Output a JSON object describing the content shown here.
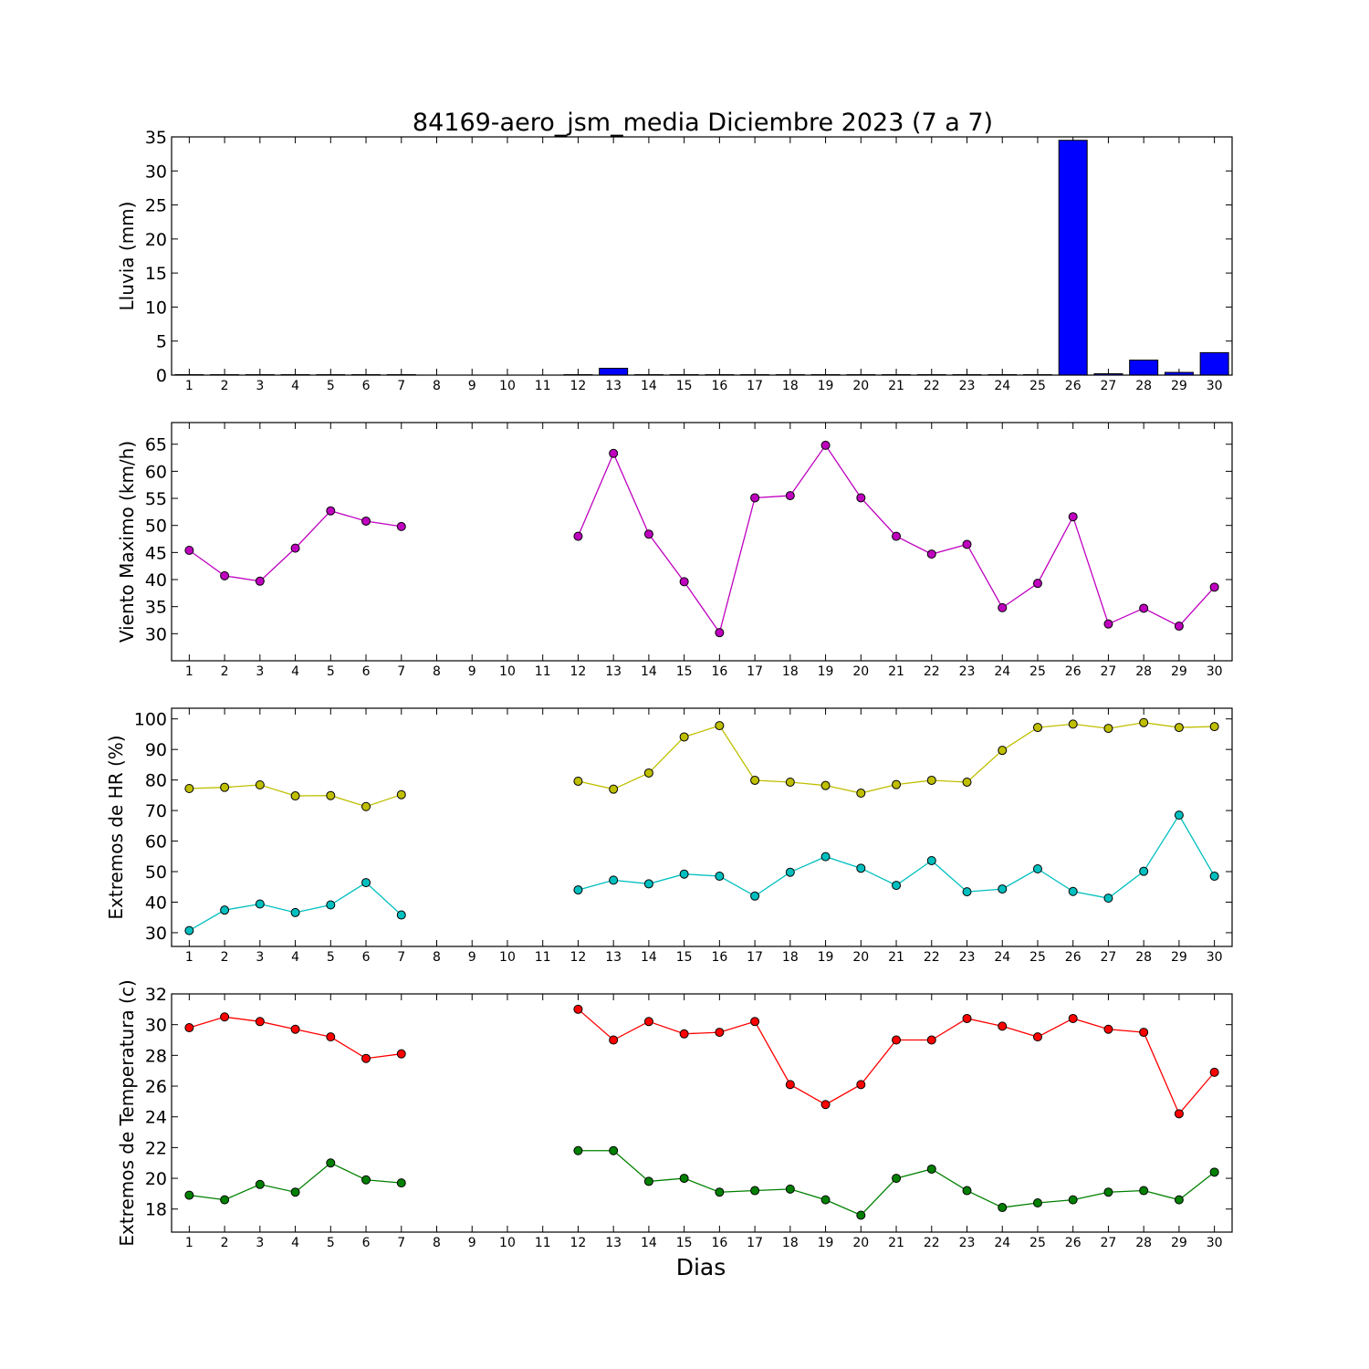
{
  "chart_data": {
    "title": "84169-aero_jsm_media Diciembre 2023  (7 a 7)",
    "xlabel": "Dias",
    "days": [
      1,
      2,
      3,
      4,
      5,
      6,
      7,
      8,
      9,
      10,
      11,
      12,
      13,
      14,
      15,
      16,
      17,
      18,
      19,
      20,
      21,
      22,
      23,
      24,
      25,
      26,
      27,
      28,
      29,
      30
    ],
    "panels": [
      {
        "name": "rain",
        "type": "bar",
        "ylabel": "Lluvia (mm)",
        "ylim": [
          0,
          35
        ],
        "yticks": [
          0,
          5,
          10,
          15,
          20,
          25,
          30,
          35
        ],
        "series": [
          {
            "color": "#0000ff",
            "values": [
              0,
              0,
              0,
              0,
              0,
              0,
              0,
              null,
              null,
              null,
              null,
              0,
              1.0,
              0,
              0,
              0,
              0,
              0,
              0,
              0,
              0,
              0,
              0,
              0,
              0,
              34.5,
              0.2,
              2.2,
              0.4,
              3.3
            ]
          }
        ]
      },
      {
        "name": "wind",
        "type": "line",
        "ylabel": "Viento Maximo (km/h)",
        "ylim": [
          25,
          69
        ],
        "yticks": [
          30,
          35,
          40,
          45,
          50,
          55,
          60,
          65
        ],
        "series": [
          {
            "color": "#bf00bf",
            "values": [
              45.4,
              40.7,
              39.7,
              45.8,
              52.7,
              50.8,
              49.8,
              null,
              null,
              null,
              null,
              48.0,
              63.3,
              48.4,
              39.6,
              30.2,
              55.1,
              55.5,
              64.8,
              55.1,
              48.0,
              44.7,
              46.5,
              34.8,
              39.3,
              51.6,
              31.8,
              34.7,
              31.4,
              38.6
            ]
          }
        ]
      },
      {
        "name": "humidity",
        "type": "line",
        "ylabel": "Extremos de HR (%)",
        "ylim": [
          25.5,
          103.5
        ],
        "yticks": [
          30,
          40,
          50,
          60,
          70,
          80,
          90,
          100
        ],
        "series": [
          {
            "color": "#bfbf00",
            "values": [
              77.2,
              77.6,
              78.4,
              74.8,
              74.9,
              71.3,
              75.2,
              null,
              null,
              null,
              null,
              79.6,
              77.0,
              82.3,
              94.1,
              97.8,
              79.9,
              79.3,
              78.2,
              75.7,
              78.5,
              79.9,
              79.3,
              89.7,
              97.2,
              98.3,
              96.9,
              98.8,
              97.2,
              97.5
            ]
          },
          {
            "color": "#00bfbf",
            "values": [
              30.7,
              37.4,
              39.4,
              36.6,
              39.1,
              46.4,
              35.8,
              null,
              null,
              null,
              null,
              44.0,
              47.2,
              46.0,
              49.2,
              48.5,
              42.0,
              49.8,
              54.9,
              51.1,
              45.5,
              53.6,
              43.4,
              44.3,
              50.9,
              43.5,
              41.3,
              50.1,
              68.5,
              48.5
            ]
          }
        ]
      },
      {
        "name": "temperature",
        "type": "line",
        "ylabel": "Extremos de Temperatura (c)",
        "ylim": [
          16.5,
          32
        ],
        "yticks": [
          18,
          20,
          22,
          24,
          26,
          28,
          30,
          32
        ],
        "series": [
          {
            "color": "#ff0000",
            "values": [
              29.8,
              30.5,
              30.2,
              29.7,
              29.2,
              27.8,
              28.1,
              null,
              null,
              null,
              null,
              31.0,
              29.0,
              30.2,
              29.4,
              29.5,
              30.2,
              26.1,
              24.8,
              26.1,
              29.0,
              29.0,
              30.4,
              29.9,
              29.2,
              30.4,
              29.7,
              29.5,
              24.2,
              26.9
            ]
          },
          {
            "color": "#008000",
            "values": [
              18.9,
              18.6,
              19.6,
              19.1,
              21.0,
              19.9,
              19.7,
              null,
              null,
              null,
              null,
              21.8,
              21.8,
              19.8,
              20.0,
              19.1,
              19.2,
              19.3,
              18.6,
              17.6,
              20.0,
              20.6,
              19.2,
              18.1,
              18.4,
              18.6,
              19.1,
              19.2,
              18.6,
              20.4
            ]
          }
        ]
      }
    ]
  }
}
